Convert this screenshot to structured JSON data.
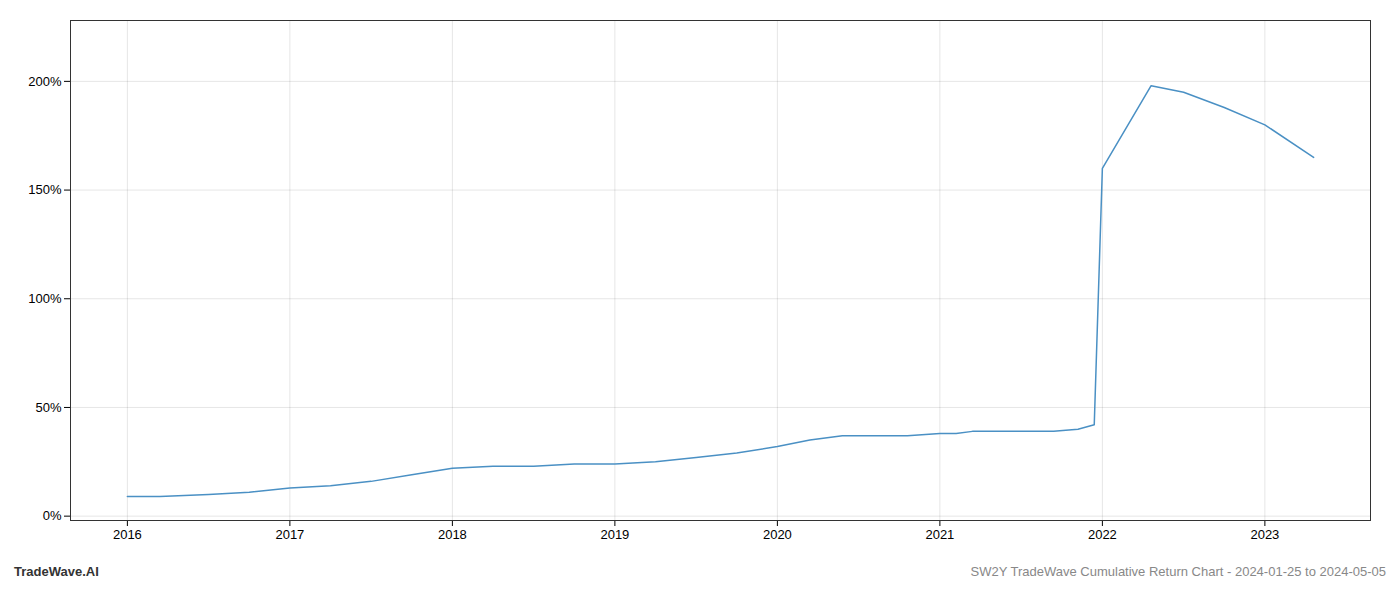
{
  "chart_data": {
    "type": "line",
    "x": [
      2016.0,
      2016.2,
      2016.5,
      2016.75,
      2017.0,
      2017.25,
      2017.5,
      2017.75,
      2018.0,
      2018.25,
      2018.5,
      2018.75,
      2019.0,
      2019.25,
      2019.5,
      2019.75,
      2020.0,
      2020.2,
      2020.4,
      2020.6,
      2020.8,
      2021.0,
      2021.1,
      2021.2,
      2021.3,
      2021.5,
      2021.7,
      2021.85,
      2021.95,
      2022.0,
      2022.3,
      2022.5,
      2022.75,
      2023.0,
      2023.3
    ],
    "values": [
      0.09,
      0.09,
      0.1,
      0.11,
      0.13,
      0.14,
      0.16,
      0.19,
      0.22,
      0.23,
      0.23,
      0.24,
      0.24,
      0.25,
      0.27,
      0.29,
      0.32,
      0.35,
      0.37,
      0.37,
      0.37,
      0.38,
      0.38,
      0.39,
      0.39,
      0.39,
      0.39,
      0.4,
      0.42,
      1.6,
      1.98,
      1.95,
      1.88,
      1.8,
      1.65
    ],
    "color": "#4a90c4",
    "xlim": [
      2015.65,
      2023.65
    ],
    "ylim": [
      -0.02,
      2.28
    ],
    "xticks": [
      2016,
      2017,
      2018,
      2019,
      2020,
      2021,
      2022,
      2023
    ],
    "yticks": [
      {
        "value": 0,
        "label": "0%"
      },
      {
        "value": 0.5,
        "label": "50%"
      },
      {
        "value": 1,
        "label": "100%"
      },
      {
        "value": 1.5,
        "label": "150%"
      },
      {
        "value": 2,
        "label": "200%"
      }
    ],
    "grid": true,
    "annotations": [
      "TradeWave.AI",
      "SW2Y TradeWave Cumulative Return Chart - 2024-01-25 to 2024-05-05"
    ]
  }
}
